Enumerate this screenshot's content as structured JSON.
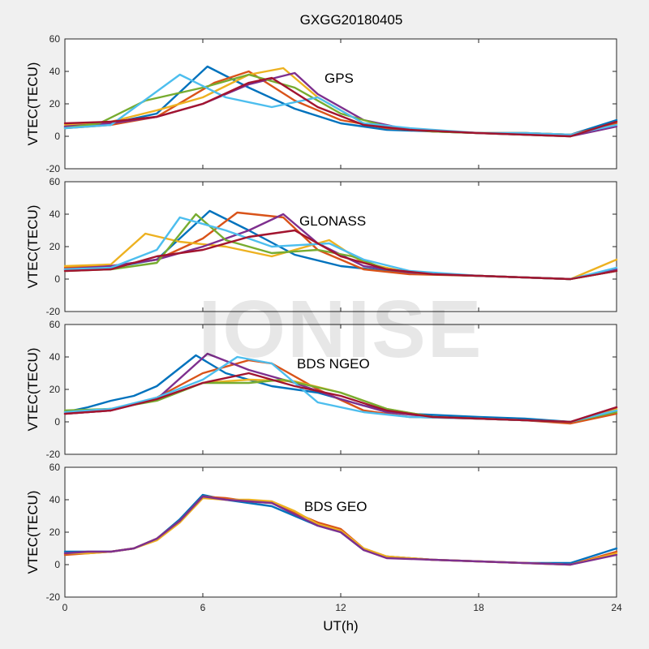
{
  "figure": {
    "title": "GXGG20180405",
    "watermark": "IONISE",
    "x_axis_label": "UT(h)",
    "x_ticks": [
      "0",
      "6",
      "12",
      "18",
      "24"
    ],
    "y_ticks": [
      "-20",
      "0",
      "20",
      "40",
      "60"
    ]
  },
  "colors": {
    "background": "#f0f0f0",
    "axes_bg": "#ffffff",
    "palette": [
      "#0072bd",
      "#d95319",
      "#edb120",
      "#7e2f8e",
      "#77ac30",
      "#4dbeee",
      "#a2142f"
    ]
  },
  "chart_data": [
    {
      "type": "line",
      "panel_label": "GPS",
      "ylabel": "VTEC(TECU)",
      "xlim": [
        0,
        24
      ],
      "ylim": [
        -20,
        60
      ],
      "series": [
        {
          "x": [
            0,
            2,
            4,
            6.2,
            8,
            10,
            12,
            14,
            16,
            18,
            20,
            22,
            24
          ],
          "y": [
            6,
            8,
            14,
            43,
            30,
            17,
            8,
            4,
            3,
            2,
            2,
            1,
            10
          ]
        },
        {
          "x": [
            0,
            2,
            4,
            6.5,
            8,
            10,
            12,
            14,
            16,
            18,
            20,
            22,
            24
          ],
          "y": [
            5,
            7,
            12,
            33,
            40,
            22,
            10,
            5,
            3,
            2,
            2,
            1,
            8
          ]
        },
        {
          "x": [
            0,
            2,
            4,
            6,
            8,
            9.5,
            11,
            13,
            15,
            18,
            20,
            22,
            24
          ],
          "y": [
            7,
            9,
            16,
            24,
            38,
            42,
            24,
            8,
            4,
            2,
            2,
            1,
            7
          ]
        },
        {
          "x": [
            0,
            2,
            4,
            6,
            8,
            10,
            11,
            13,
            15,
            18,
            20,
            22,
            24
          ],
          "y": [
            6,
            8,
            12,
            20,
            32,
            39,
            26,
            10,
            4,
            2,
            1,
            0,
            6
          ]
        },
        {
          "x": [
            0,
            1.5,
            3.5,
            6,
            8,
            10,
            12,
            14,
            16,
            18,
            20,
            22,
            24
          ],
          "y": [
            5,
            8,
            22,
            30,
            38,
            30,
            14,
            6,
            3,
            2,
            1,
            0,
            9
          ]
        },
        {
          "x": [
            0,
            2,
            5,
            7,
            9,
            11,
            13,
            15,
            18,
            20,
            22,
            24
          ],
          "y": [
            5,
            7,
            38,
            24,
            18,
            24,
            8,
            5,
            2,
            2,
            1,
            7
          ]
        },
        {
          "x": [
            0,
            2,
            4,
            6,
            8,
            9,
            11,
            13,
            15,
            18,
            20,
            22,
            24
          ],
          "y": [
            8,
            9,
            12,
            20,
            33,
            36,
            18,
            7,
            4,
            2,
            1,
            0,
            9
          ]
        }
      ]
    },
    {
      "type": "line",
      "panel_label": "GLONASS",
      "ylabel": "VTEC(TECU)",
      "xlim": [
        0,
        24
      ],
      "ylim": [
        -20,
        60
      ],
      "series": [
        {
          "x": [
            0,
            2,
            4,
            6.3,
            8,
            10,
            12,
            14,
            16,
            18,
            20,
            22,
            24
          ],
          "y": [
            6,
            7,
            12,
            42,
            30,
            15,
            8,
            5,
            3,
            2,
            1,
            0,
            6
          ]
        },
        {
          "x": [
            0,
            2,
            4,
            6,
            7.5,
            9.5,
            11,
            13,
            15,
            18,
            20,
            22,
            24
          ],
          "y": [
            7,
            8,
            12,
            25,
            41,
            38,
            18,
            6,
            3,
            2,
            1,
            0,
            5
          ]
        },
        {
          "x": [
            0,
            2,
            3.5,
            5,
            7,
            9,
            11.5,
            13,
            15,
            18,
            20,
            22,
            24
          ],
          "y": [
            8,
            9,
            28,
            23,
            20,
            14,
            24,
            10,
            4,
            2,
            1,
            0,
            12
          ]
        },
        {
          "x": [
            0,
            2,
            4,
            6,
            8,
            9.5,
            11,
            13,
            15,
            18,
            20,
            22,
            24
          ],
          "y": [
            6,
            8,
            12,
            20,
            30,
            40,
            22,
            8,
            4,
            2,
            1,
            0,
            6
          ]
        },
        {
          "x": [
            0,
            2,
            4,
            5.7,
            7,
            9,
            11,
            12.5,
            14,
            16,
            18,
            20,
            22,
            24
          ],
          "y": [
            5,
            6,
            10,
            40,
            24,
            16,
            18,
            14,
            6,
            3,
            2,
            1,
            0,
            5
          ]
        },
        {
          "x": [
            0,
            2,
            4,
            5,
            7,
            9,
            11.5,
            13,
            15,
            18,
            20,
            22,
            24
          ],
          "y": [
            6,
            7,
            18,
            38,
            30,
            20,
            22,
            12,
            5,
            2,
            1,
            0,
            7
          ]
        },
        {
          "x": [
            0,
            2,
            4,
            6,
            8,
            10,
            12,
            14,
            16,
            18,
            20,
            22,
            24
          ],
          "y": [
            5,
            6,
            14,
            18,
            26,
            30,
            14,
            6,
            3,
            2,
            1,
            0,
            5
          ]
        }
      ]
    },
    {
      "type": "line",
      "panel_label": "BDS NGEO",
      "ylabel": "VTEC(TECU)",
      "xlim": [
        0,
        24
      ],
      "ylim": [
        -20,
        60
      ],
      "series": [
        {
          "x": [
            0,
            1,
            2,
            3,
            4,
            5.7,
            7,
            9,
            11,
            13,
            15,
            18,
            20,
            22,
            24
          ],
          "y": [
            6,
            9,
            13,
            16,
            22,
            41,
            30,
            22,
            18,
            10,
            5,
            3,
            2,
            0,
            7
          ]
        },
        {
          "x": [
            0,
            2,
            4,
            6,
            8,
            9,
            11,
            13,
            15,
            18,
            20,
            22,
            24
          ],
          "y": [
            5,
            7,
            15,
            30,
            38,
            36,
            20,
            7,
            3,
            2,
            1,
            -1,
            5
          ]
        },
        {
          "x": [
            0,
            2,
            4,
            6,
            8,
            10,
            12,
            14,
            16,
            18,
            20,
            22,
            24
          ],
          "y": [
            6,
            8,
            14,
            24,
            26,
            25,
            18,
            8,
            3,
            2,
            1,
            0,
            8
          ]
        },
        {
          "x": [
            0,
            2,
            4,
            6.2,
            8,
            10,
            12,
            14,
            16,
            18,
            20,
            22,
            24
          ],
          "y": [
            5,
            7,
            14,
            42,
            32,
            24,
            14,
            6,
            3,
            2,
            1,
            0,
            9
          ]
        },
        {
          "x": [
            0,
            2,
            4,
            6,
            8,
            9.5,
            12,
            14,
            16,
            18,
            20,
            22,
            24
          ],
          "y": [
            7,
            8,
            13,
            24,
            24,
            26,
            18,
            8,
            3,
            2,
            1,
            0,
            6
          ]
        },
        {
          "x": [
            0,
            2,
            4,
            6,
            7.5,
            9,
            11,
            13,
            15,
            18,
            20,
            22,
            24
          ],
          "y": [
            6,
            8,
            15,
            26,
            40,
            36,
            12,
            6,
            3,
            2,
            1,
            0,
            7
          ]
        },
        {
          "x": [
            0,
            2,
            4,
            6,
            8,
            10,
            12,
            14,
            16,
            18,
            20,
            22,
            24
          ],
          "y": [
            5,
            7,
            14,
            24,
            30,
            22,
            16,
            7,
            3,
            2,
            1,
            0,
            9
          ]
        }
      ]
    },
    {
      "type": "line",
      "panel_label": "BDS GEO",
      "ylabel": "VTEC(TECU)",
      "xlim": [
        0,
        24
      ],
      "ylim": [
        -20,
        60
      ],
      "series": [
        {
          "x": [
            0,
            1,
            2,
            3,
            4,
            5,
            6,
            7,
            8,
            9,
            10,
            11,
            12,
            13,
            14,
            16,
            18,
            20,
            22,
            24
          ],
          "y": [
            8,
            8,
            8,
            10,
            16,
            28,
            43,
            40,
            38,
            36,
            30,
            24,
            20,
            9,
            5,
            3,
            2,
            1,
            1,
            10
          ]
        },
        {
          "x": [
            0,
            1,
            2,
            3,
            4,
            5,
            6,
            7,
            8,
            9,
            10,
            11,
            12,
            13,
            14,
            16,
            18,
            20,
            22,
            24
          ],
          "y": [
            6,
            7,
            8,
            10,
            16,
            27,
            42,
            41,
            39,
            38,
            32,
            26,
            22,
            10,
            5,
            3,
            2,
            1,
            0,
            8
          ]
        },
        {
          "x": [
            0,
            1,
            2,
            3,
            4,
            5,
            6,
            7,
            8,
            9,
            10,
            11,
            12,
            13,
            14,
            16,
            18,
            20,
            22,
            24
          ],
          "y": [
            7,
            7,
            8,
            10,
            15,
            26,
            41,
            40,
            40,
            39,
            33,
            25,
            21,
            10,
            5,
            3,
            2,
            1,
            0,
            7
          ]
        },
        {
          "x": [
            0,
            1,
            2,
            3,
            4,
            5,
            6,
            7,
            8,
            9,
            10,
            11,
            12,
            13,
            14,
            16,
            18,
            20,
            22,
            24
          ],
          "y": [
            7,
            8,
            8,
            10,
            16,
            27,
            42,
            40,
            39,
            38,
            31,
            24,
            20,
            9,
            4,
            3,
            2,
            1,
            0,
            6
          ]
        }
      ]
    }
  ]
}
